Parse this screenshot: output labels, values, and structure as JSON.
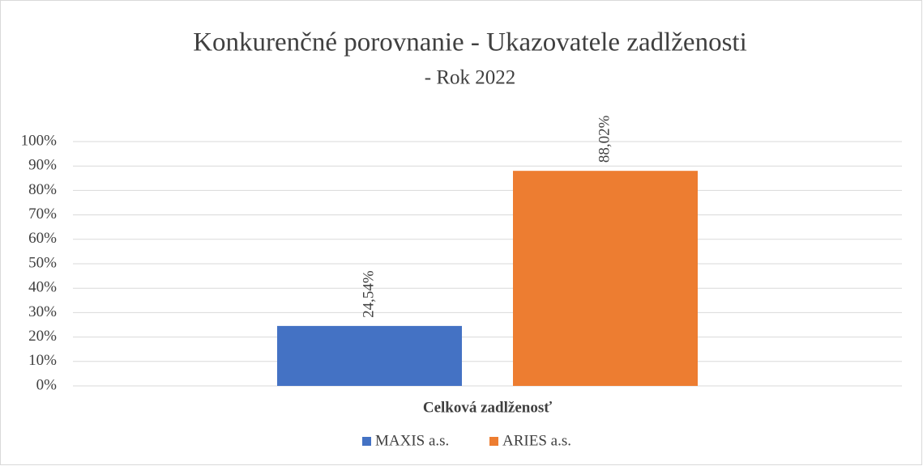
{
  "chart_data": {
    "type": "bar",
    "title": "Konkurenčné porovnanie - Ukazovatele zadlženosti",
    "subtitle": "- Rok 2022",
    "categories": [
      "Celková zadlženosť"
    ],
    "series": [
      {
        "name": "MAXIS a.s.",
        "color": "#4472c4",
        "values": [
          24.54
        ],
        "value_labels": [
          "24,54%"
        ]
      },
      {
        "name": "ARIES a.s.",
        "color": "#ed7d31",
        "values": [
          88.02
        ],
        "value_labels": [
          "88,02%"
        ]
      }
    ],
    "ylim": [
      0,
      100
    ],
    "yticks": [
      {
        "value": 0,
        "label": "0%"
      },
      {
        "value": 10,
        "label": "10%"
      },
      {
        "value": 20,
        "label": "20%"
      },
      {
        "value": 30,
        "label": "30%"
      },
      {
        "value": 40,
        "label": "40%"
      },
      {
        "value": 50,
        "label": "50%"
      },
      {
        "value": 60,
        "label": "60%"
      },
      {
        "value": 70,
        "label": "70%"
      },
      {
        "value": 80,
        "label": "80%"
      },
      {
        "value": 90,
        "label": "90%"
      },
      {
        "value": 100,
        "label": "100%"
      }
    ],
    "grid": true,
    "legend": "bottom"
  }
}
